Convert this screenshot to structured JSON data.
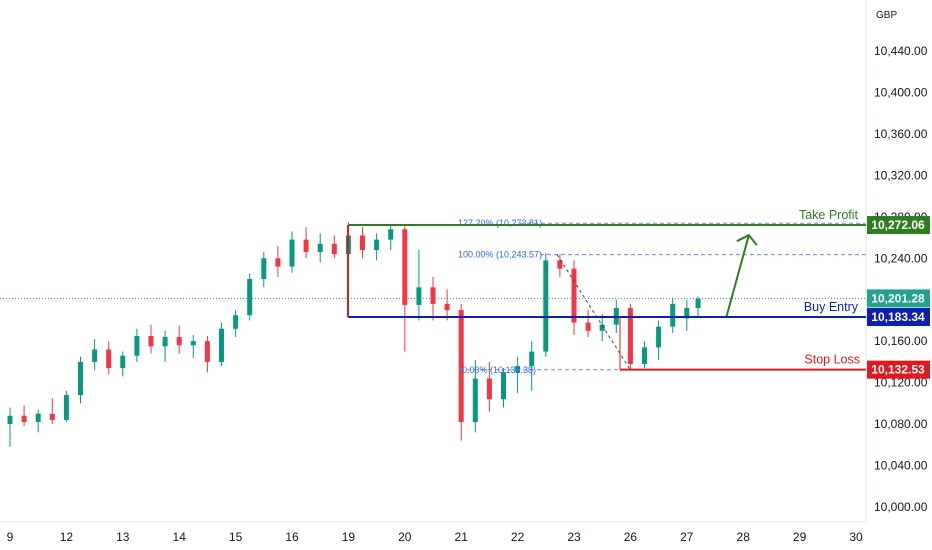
{
  "currency": "GBP",
  "chart_data": {
    "type": "candlestick",
    "y_axis_ticks": [
      "10,440.00",
      "10,400.00",
      "10,360.00",
      "10,320.00",
      "10,280.00",
      "10,240.00",
      "10,200.00",
      "10,160.00",
      "10,120.00",
      "10,080.00",
      "10,040.00",
      "10,000.00"
    ],
    "x_axis_ticks": [
      "9",
      "12",
      "13",
      "14",
      "15",
      "16",
      "19",
      "20",
      "21",
      "22",
      "23",
      "26",
      "27",
      "28",
      "29",
      "30"
    ],
    "ylim": [
      10000,
      10440
    ],
    "levels": [
      {
        "name": "Take Profit",
        "value": 10272.06,
        "label": "Take Profit",
        "tag": "10,272.06",
        "color": "#2e7d1f"
      },
      {
        "name": "Buy Entry",
        "value": 10183.34,
        "label": "Buy Entry",
        "tag": "10,183.34",
        "color": "#0d1fb3"
      },
      {
        "name": "Stop Loss",
        "value": 10132.53,
        "label": "Stop Loss",
        "tag": "10,132.53",
        "color": "#e0191c"
      }
    ],
    "current_price": {
      "value": 10201.28,
      "tag": "10,201.28",
      "color": "#22a28e"
    },
    "fibonacci": [
      {
        "label": "127.20% (10,273.81)",
        "value": 10273.81
      },
      {
        "label": "100.00% (10,243.57)",
        "value": 10243.57
      },
      {
        "label": "0.00% (10,132.38)",
        "value": 10132.38
      }
    ],
    "candles": [
      {
        "day": 0,
        "o": 10080,
        "h": 10096,
        "l": 10058,
        "c": 10088
      },
      {
        "day": 0.25,
        "o": 10088,
        "h": 10098,
        "l": 10078,
        "c": 10082
      },
      {
        "day": 0.5,
        "o": 10082,
        "h": 10094,
        "l": 10072,
        "c": 10090
      },
      {
        "day": 0.75,
        "o": 10090,
        "h": 10105,
        "l": 10080,
        "c": 10084
      },
      {
        "day": 1,
        "o": 10084,
        "h": 10112,
        "l": 10082,
        "c": 10108
      },
      {
        "day": 1.25,
        "o": 10108,
        "h": 10145,
        "l": 10100,
        "c": 10140
      },
      {
        "day": 1.5,
        "o": 10140,
        "h": 10162,
        "l": 10132,
        "c": 10152
      },
      {
        "day": 1.75,
        "o": 10152,
        "h": 10160,
        "l": 10128,
        "c": 10134
      },
      {
        "day": 2,
        "o": 10134,
        "h": 10150,
        "l": 10126,
        "c": 10146
      },
      {
        "day": 2.25,
        "o": 10146,
        "h": 10172,
        "l": 10140,
        "c": 10165
      },
      {
        "day": 2.5,
        "o": 10165,
        "h": 10176,
        "l": 10148,
        "c": 10155
      },
      {
        "day": 2.75,
        "o": 10155,
        "h": 10170,
        "l": 10140,
        "c": 10164
      },
      {
        "day": 3,
        "o": 10164,
        "h": 10175,
        "l": 10148,
        "c": 10156
      },
      {
        "day": 3.25,
        "o": 10156,
        "h": 10166,
        "l": 10144,
        "c": 10160
      },
      {
        "day": 3.5,
        "o": 10160,
        "h": 10165,
        "l": 10130,
        "c": 10140
      },
      {
        "day": 3.75,
        "o": 10140,
        "h": 10178,
        "l": 10136,
        "c": 10172
      },
      {
        "day": 4,
        "o": 10172,
        "h": 10190,
        "l": 10164,
        "c": 10185
      },
      {
        "day": 4.25,
        "o": 10185,
        "h": 10225,
        "l": 10180,
        "c": 10220
      },
      {
        "day": 4.5,
        "o": 10220,
        "h": 10246,
        "l": 10212,
        "c": 10240
      },
      {
        "day": 4.75,
        "o": 10240,
        "h": 10252,
        "l": 10222,
        "c": 10232
      },
      {
        "day": 5,
        "o": 10232,
        "h": 10266,
        "l": 10226,
        "c": 10258
      },
      {
        "day": 5.25,
        "o": 10258,
        "h": 10270,
        "l": 10240,
        "c": 10246
      },
      {
        "day": 5.5,
        "o": 10246,
        "h": 10264,
        "l": 10236,
        "c": 10254
      },
      {
        "day": 5.75,
        "o": 10254,
        "h": 10262,
        "l": 10240,
        "c": 10244
      },
      {
        "day": 6,
        "o": 10244,
        "h": 10275,
        "l": 10236,
        "c": 10262
      },
      {
        "day": 6.25,
        "o": 10262,
        "h": 10270,
        "l": 10240,
        "c": 10248
      },
      {
        "day": 6.5,
        "o": 10248,
        "h": 10264,
        "l": 10238,
        "c": 10258
      },
      {
        "day": 6.75,
        "o": 10258,
        "h": 10272,
        "l": 10248,
        "c": 10268
      },
      {
        "day": 7,
        "o": 10268,
        "h": 10272,
        "l": 10150,
        "c": 10195
      },
      {
        "day": 7.25,
        "o": 10195,
        "h": 10248,
        "l": 10180,
        "c": 10212
      },
      {
        "day": 7.5,
        "o": 10212,
        "h": 10222,
        "l": 10180,
        "c": 10196
      },
      {
        "day": 7.75,
        "o": 10196,
        "h": 10210,
        "l": 10180,
        "c": 10190
      },
      {
        "day": 8,
        "o": 10190,
        "h": 10196,
        "l": 10064,
        "c": 10082
      },
      {
        "day": 8.25,
        "o": 10082,
        "h": 10142,
        "l": 10072,
        "c": 10124
      },
      {
        "day": 8.5,
        "o": 10124,
        "h": 10140,
        "l": 10092,
        "c": 10104
      },
      {
        "day": 8.75,
        "o": 10104,
        "h": 10134,
        "l": 10096,
        "c": 10130
      },
      {
        "day": 9,
        "o": 10130,
        "h": 10145,
        "l": 10110,
        "c": 10136
      },
      {
        "day": 9.25,
        "o": 10136,
        "h": 10160,
        "l": 10112,
        "c": 10150
      },
      {
        "day": 9.5,
        "o": 10150,
        "h": 10245,
        "l": 10145,
        "c": 10238
      },
      {
        "day": 9.75,
        "o": 10238,
        "h": 10244,
        "l": 10222,
        "c": 10230
      },
      {
        "day": 10,
        "o": 10230,
        "h": 10238,
        "l": 10166,
        "c": 10178
      },
      {
        "day": 10.25,
        "o": 10178,
        "h": 10190,
        "l": 10164,
        "c": 10170
      },
      {
        "day": 10.5,
        "o": 10170,
        "h": 10186,
        "l": 10160,
        "c": 10176
      },
      {
        "day": 10.75,
        "o": 10176,
        "h": 10200,
        "l": 10168,
        "c": 10192
      },
      {
        "day": 11,
        "o": 10192,
        "h": 10196,
        "l": 10132,
        "c": 10138
      },
      {
        "day": 11.25,
        "o": 10138,
        "h": 10160,
        "l": 10134,
        "c": 10154
      },
      {
        "day": 11.5,
        "o": 10154,
        "h": 10180,
        "l": 10142,
        "c": 10174
      },
      {
        "day": 11.75,
        "o": 10174,
        "h": 10202,
        "l": 10168,
        "c": 10196
      },
      {
        "day": 12,
        "o": 10182,
        "h": 10200,
        "l": 10170,
        "c": 10192
      },
      {
        "day": 12.2,
        "o": 10192,
        "h": 10203,
        "l": 10184,
        "c": 10201
      }
    ],
    "annotation": {
      "type": "arrow",
      "from_day": 12.7,
      "from": 10183,
      "to_day": 13.1,
      "to": 10270
    }
  }
}
